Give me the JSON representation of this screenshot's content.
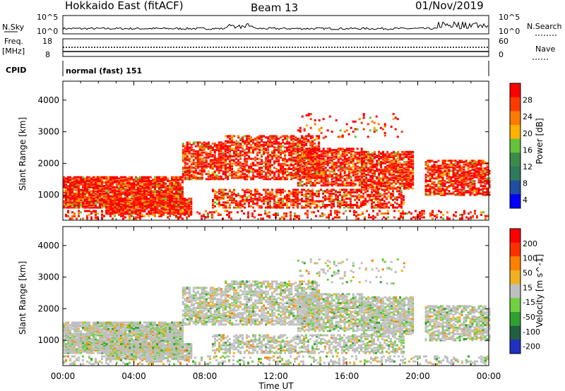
{
  "header": {
    "radar": "Hokkaido East (fitACF)",
    "beam": "Beam 13",
    "date": "01/Nov/2019"
  },
  "noise_panel": {
    "left_label": "N.Sky",
    "right_label": "N.Search",
    "left_ticks": [
      "10^5",
      "10^0"
    ],
    "right_ticks": [
      "10^5",
      "10^0"
    ]
  },
  "freq_panel": {
    "left_label_1": "Freq.",
    "left_label_2": "[MHz]",
    "right_label": "Nave",
    "left_ticks": [
      "18",
      "8"
    ],
    "right_ticks": [
      "60",
      "0"
    ]
  },
  "cpid_panel": {
    "label": "CPID",
    "mode": "normal (fast) 151"
  },
  "colors": {
    "power_scale": [
      "#0000ff",
      "#1e4fa0",
      "#2e7a5a",
      "#3c8a4a",
      "#66c23a",
      "#ffb000",
      "#ff7a00",
      "#ff3a00",
      "#ff0000"
    ],
    "velocity_scale": [
      "#2030c0",
      "#206040",
      "#30a030",
      "#70d040",
      "#bfbfbf",
      "#f0b020",
      "#ff8000",
      "#ff3000",
      "#ff0000"
    ]
  },
  "chart_data": [
    {
      "type": "heatmap",
      "ylabel": "Slant Range [km]",
      "colorbar_label": "Power [dB]",
      "colorbar_ticks": [
        "28",
        "24",
        "20",
        "16",
        "12",
        "8",
        "4"
      ],
      "colorbar_range": [
        0,
        30
      ],
      "y_ticks": [
        1000,
        2000,
        3000,
        4000
      ],
      "ylim": [
        200,
        4600
      ],
      "xlim": [
        "00:00",
        "24:00"
      ]
    },
    {
      "type": "heatmap",
      "ylabel": "Slant Range [km]",
      "colorbar_label": "Velocity [m s^-1]",
      "colorbar_ticks": [
        "200",
        "100",
        "50",
        "15",
        "-15",
        "-50",
        "-100",
        "-200"
      ],
      "colorbar_range": [
        -250,
        250
      ],
      "y_ticks": [
        1000,
        2000,
        3000,
        4000
      ],
      "ylim": [
        200,
        4600
      ],
      "xlim": [
        "00:00",
        "24:00"
      ]
    }
  ],
  "x_axis": {
    "ticks": [
      "00:00",
      "04:00",
      "08:00",
      "12:00",
      "16:00",
      "20:00",
      "00:00"
    ],
    "label": "Time UT"
  }
}
